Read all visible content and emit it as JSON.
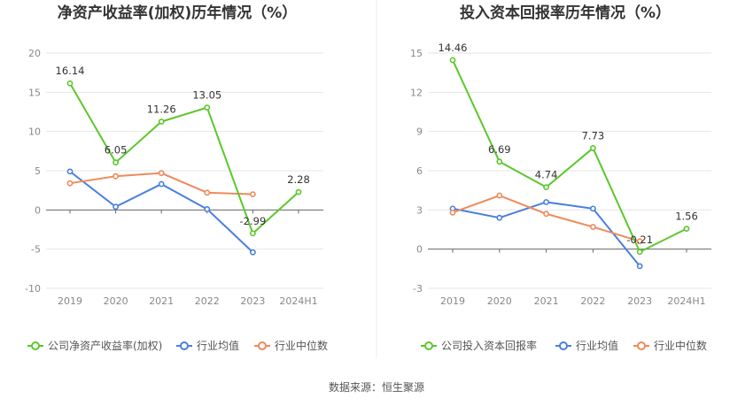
{
  "charts": [
    {
      "type": "line",
      "title": "净资产收益率(加权)历年情况（%）",
      "categories": [
        "2019",
        "2020",
        "2021",
        "2022",
        "2023",
        "2024H1"
      ],
      "ylim": [
        -10,
        20
      ],
      "yticks": [
        -10,
        -5,
        0,
        5,
        10,
        15,
        20
      ],
      "grid": true,
      "legend_position": "bottom",
      "series": [
        {
          "name": "公司净资产收益率(加权)",
          "color": "#5cc72c",
          "values": [
            16.14,
            6.05,
            11.26,
            13.05,
            -2.99,
            2.28
          ],
          "labels": [
            "16.14",
            "6.05",
            "11.26",
            "13.05",
            "-2.99",
            "2.28"
          ]
        },
        {
          "name": "行业均值",
          "color": "#4a7fdc",
          "values": [
            4.9,
            0.4,
            3.3,
            0.1,
            -5.4,
            null
          ]
        },
        {
          "name": "行业中位数",
          "color": "#ef8a5b",
          "values": [
            3.4,
            4.3,
            4.7,
            2.2,
            2.0,
            null
          ]
        }
      ]
    },
    {
      "type": "line",
      "title": "投入资本回报率历年情况（%）",
      "categories": [
        "2019",
        "2020",
        "2021",
        "2022",
        "2023",
        "2024H1"
      ],
      "ylim": [
        -3,
        15
      ],
      "yticks": [
        -3,
        0,
        3,
        6,
        9,
        12,
        15
      ],
      "grid": true,
      "legend_position": "bottom",
      "series": [
        {
          "name": "公司投入资本回报率",
          "color": "#5cc72c",
          "values": [
            14.46,
            6.69,
            4.74,
            7.73,
            -0.21,
            1.56
          ],
          "labels": [
            "14.46",
            "6.69",
            "4.74",
            "7.73",
            "-0.21",
            "1.56"
          ]
        },
        {
          "name": "行业均值",
          "color": "#4a7fdc",
          "values": [
            3.1,
            2.4,
            3.6,
            3.1,
            -1.3,
            null
          ]
        },
        {
          "name": "行业中位数",
          "color": "#ef8a5b",
          "values": [
            2.8,
            4.1,
            2.7,
            1.7,
            0.6,
            null
          ]
        }
      ]
    }
  ],
  "source": "数据来源：恒生聚源"
}
